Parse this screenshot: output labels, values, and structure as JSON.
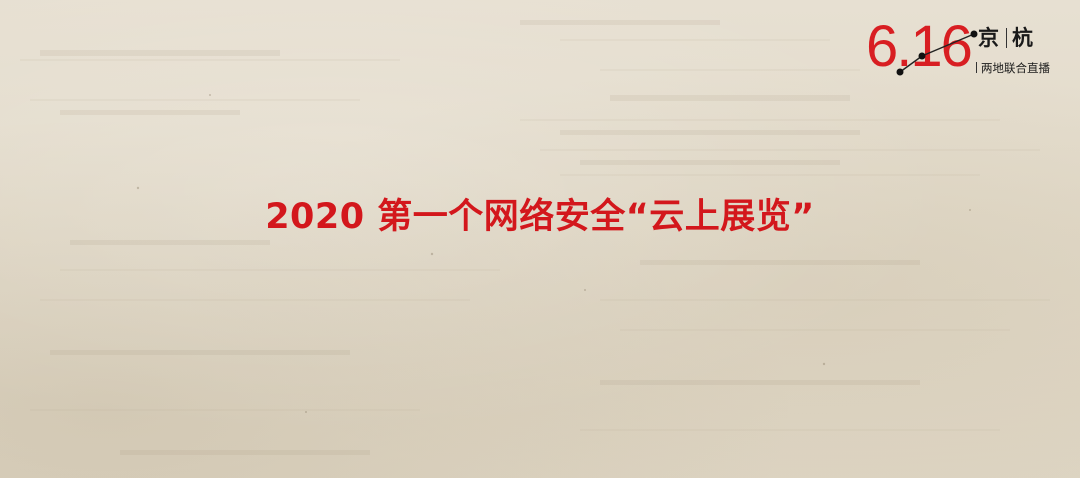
{
  "logo": {
    "date": "6.16",
    "city_a": "京",
    "city_b": "杭",
    "subtitle": "两地联合直播",
    "accent_color": "#d81e22"
  },
  "headline": {
    "text": "2020 第一个网络安全“云上展览”",
    "color": "#d3171c"
  },
  "background": {
    "style": "aged newspaper paper texture",
    "color": "#e2dac9"
  }
}
